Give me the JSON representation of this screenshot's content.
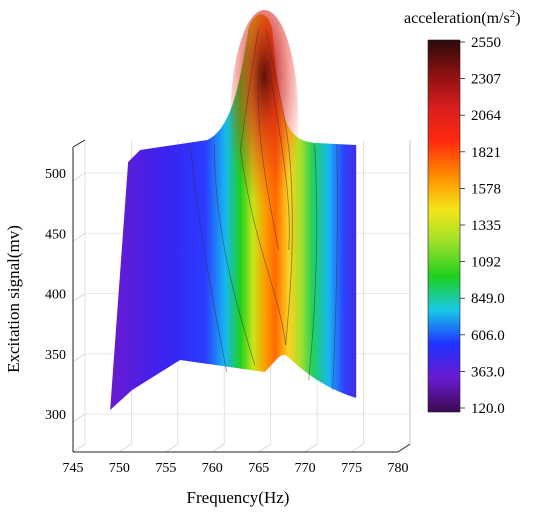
{
  "chart_data": {
    "type": "surface-3d",
    "xlabel": "Frequency(Hz)",
    "ylabel": "Excitation signal(mv)",
    "x_ticks": [
      "745",
      "750",
      "755",
      "760",
      "765",
      "770",
      "775",
      "780"
    ],
    "y_ticks": [
      "300",
      "350",
      "400",
      "450",
      "500"
    ],
    "xlim": [
      745,
      780
    ],
    "ylim": [
      300,
      520
    ],
    "x_range_data": [
      749,
      775.5
    ],
    "y_range_data": [
      305,
      520
    ],
    "peak": {
      "frequency": 765.5,
      "excitation": 520,
      "acceleration": 2550
    },
    "ridge": [
      {
        "excitation": 310,
        "frequency": 767.8,
        "acceleration": 1335
      },
      {
        "excitation": 350,
        "frequency": 767.5,
        "acceleration": 1500
      },
      {
        "excitation": 400,
        "frequency": 767.0,
        "acceleration": 1700
      },
      {
        "excitation": 450,
        "frequency": 766.5,
        "acceleration": 1950
      },
      {
        "excitation": 500,
        "frequency": 766.0,
        "acceleration": 2300
      },
      {
        "excitation": 520,
        "frequency": 765.5,
        "acceleration": 2550
      }
    ],
    "colorbar": {
      "title_main": "acceleration(m/s",
      "title_sup": "2",
      "title_close": ")",
      "labels": [
        "2550",
        "2307",
        "2064",
        "1821",
        "1578",
        "1335",
        "1092",
        "849.0",
        "606.0",
        "363.0",
        "120.0"
      ],
      "range": [
        120,
        2550
      ],
      "colors": [
        "#2a0a0a",
        "#8b1010",
        "#d81e1e",
        "#ff2a10",
        "#ff8c00",
        "#f5e61a",
        "#9be02a",
        "#1ed01e",
        "#18c8e8",
        "#2030ff",
        "#6a1ad0",
        "#3c0a50"
      ]
    },
    "grid": true,
    "colormap": "rainbow"
  }
}
